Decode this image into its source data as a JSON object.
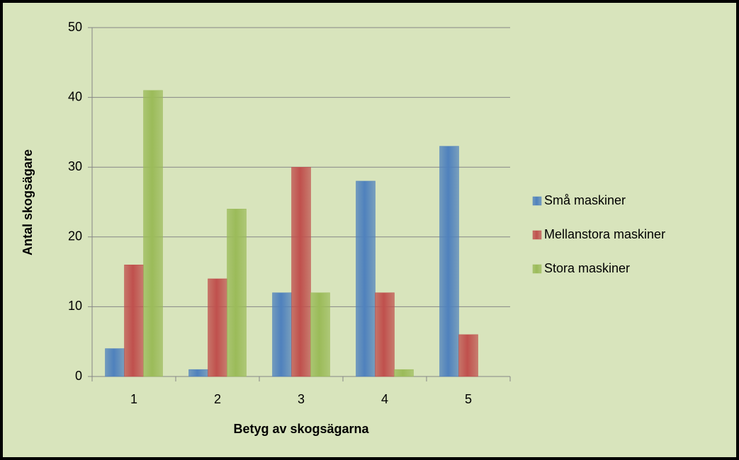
{
  "chart_data": {
    "type": "bar",
    "categories": [
      "1",
      "2",
      "3",
      "4",
      "5"
    ],
    "series": [
      {
        "name": "Små maskiner",
        "color": "#4f81bd",
        "values": [
          4,
          1,
          12,
          28,
          33
        ]
      },
      {
        "name": "Mellanstora maskiner",
        "color": "#c0504d",
        "values": [
          16,
          14,
          30,
          12,
          6
        ]
      },
      {
        "name": "Stora maskiner",
        "color": "#9bbb59",
        "values": [
          41,
          24,
          12,
          1,
          0
        ]
      }
    ],
    "xlabel": "Betyg av skogsägarna",
    "ylabel": "Antal skogsägare",
    "ylim": [
      0,
      50
    ],
    "yticks": [
      0,
      10,
      20,
      30,
      40,
      50
    ],
    "grid": true,
    "legend": "right"
  }
}
